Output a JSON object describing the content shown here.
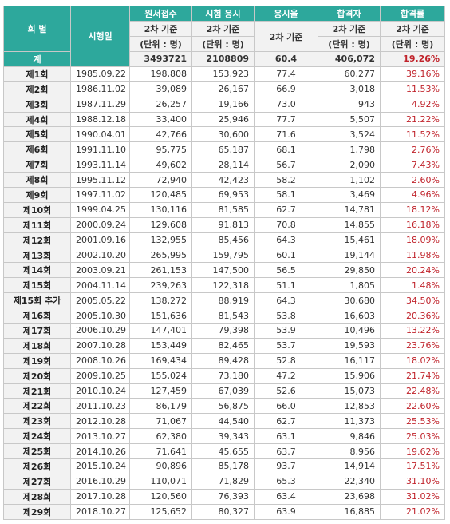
{
  "header": {
    "round": "회 별",
    "date": "시행일",
    "columns": [
      "원서접수",
      "시험 응시",
      "응시율",
      "합격자",
      "합격률"
    ],
    "basis": [
      "2차 기준",
      "2차 기준",
      "2차 기준",
      "2차 기준",
      "2차 기준"
    ],
    "unit": [
      "(단위 : 명)",
      "(단위 : 명)",
      "(단위 : 명)",
      "(단위 : 명)"
    ]
  },
  "total": {
    "label": "계",
    "values": [
      "3493721",
      "2108809",
      "60.4",
      "406,072",
      "19.26%"
    ]
  },
  "rows": [
    [
      "제1회",
      "1985.09.22",
      "198,808",
      "153,923",
      "77.4",
      "60,277",
      "39.16%"
    ],
    [
      "제2회",
      "1986.11.02",
      "39,089",
      "26,167",
      "66.9",
      "3,018",
      "11.53%"
    ],
    [
      "제3회",
      "1987.11.29",
      "26,257",
      "19,166",
      "73.0",
      "943",
      "4.92%"
    ],
    [
      "제4회",
      "1988.12.18",
      "33,400",
      "25,946",
      "77.7",
      "5,507",
      "21.22%"
    ],
    [
      "제5회",
      "1990.04.01",
      "42,766",
      "30,600",
      "71.6",
      "3,524",
      "11.52%"
    ],
    [
      "제6회",
      "1991.11.10",
      "95,775",
      "65,187",
      "68.1",
      "1,798",
      "2.76%"
    ],
    [
      "제7회",
      "1993.11.14",
      "49,602",
      "28,114",
      "56.7",
      "2,090",
      "7.43%"
    ],
    [
      "제8회",
      "1995.11.12",
      "72,940",
      "42,423",
      "58.2",
      "1,102",
      "2.60%"
    ],
    [
      "제9회",
      "1997.11.02",
      "120,485",
      "69,953",
      "58.1",
      "3,469",
      "4.96%"
    ],
    [
      "제10회",
      "1999.04.25",
      "130,116",
      "81,585",
      "62.7",
      "14,781",
      "18.12%"
    ],
    [
      "제11회",
      "2000.09.24",
      "129,608",
      "91,813",
      "70.8",
      "14,855",
      "16.18%"
    ],
    [
      "제12회",
      "2001.09.16",
      "132,955",
      "85,456",
      "64.3",
      "15,461",
      "18.09%"
    ],
    [
      "제13회",
      "2002.10.20",
      "265,995",
      "159,795",
      "60.1",
      "19,144",
      "11.98%"
    ],
    [
      "제14회",
      "2003.09.21",
      "261,153",
      "147,500",
      "56.5",
      "29,850",
      "20.24%"
    ],
    [
      "제15회",
      "2004.11.14",
      "239,263",
      "122,318",
      "51.1",
      "1,805",
      "1.48%"
    ],
    [
      "제15회 추가",
      "2005.05.22",
      "138,272",
      "88,919",
      "64.3",
      "30,680",
      "34.50%"
    ],
    [
      "제16회",
      "2005.10.30",
      "151,636",
      "81,543",
      "53.8",
      "16,603",
      "20.36%"
    ],
    [
      "제17회",
      "2006.10.29",
      "147,401",
      "79,398",
      "53.9",
      "10,496",
      "13.22%"
    ],
    [
      "제18회",
      "2007.10.28",
      "153,449",
      "82,465",
      "53.7",
      "19,593",
      "23.76%"
    ],
    [
      "제19회",
      "2008.10.26",
      "169,434",
      "89,428",
      "52.8",
      "16,117",
      "18.02%"
    ],
    [
      "제20회",
      "2009.10.25",
      "155,024",
      "73,180",
      "47.2",
      "15,906",
      "21.74%"
    ],
    [
      "제21회",
      "2010.10.24",
      "127,459",
      "67,039",
      "52.6",
      "15,073",
      "22.48%"
    ],
    [
      "제22회",
      "2011.10.23",
      "86,179",
      "56,875",
      "66.0",
      "12,853",
      "22.60%"
    ],
    [
      "제23회",
      "2012.10.28",
      "71,067",
      "44,540",
      "62.7",
      "11,373",
      "25.53%"
    ],
    [
      "제24회",
      "2013.10.27",
      "62,380",
      "39,343",
      "63.1",
      "9,846",
      "25.03%"
    ],
    [
      "제25회",
      "2014.10.26",
      "71,641",
      "45,655",
      "63.7",
      "8,956",
      "19.62%"
    ],
    [
      "제26회",
      "2015.10.24",
      "90,896",
      "85,178",
      "93.7",
      "14,914",
      "17.51%"
    ],
    [
      "제27회",
      "2016.10.29",
      "110,071",
      "71,829",
      "65.3",
      "22,340",
      "31.10%"
    ],
    [
      "제28회",
      "2017.10.28",
      "120,560",
      "76,393",
      "63.4",
      "23,698",
      "31.02%"
    ],
    [
      "제29회",
      "2018.10.27",
      "125,652",
      "80,327",
      "63.9",
      "16,885",
      "21.02%"
    ]
  ]
}
